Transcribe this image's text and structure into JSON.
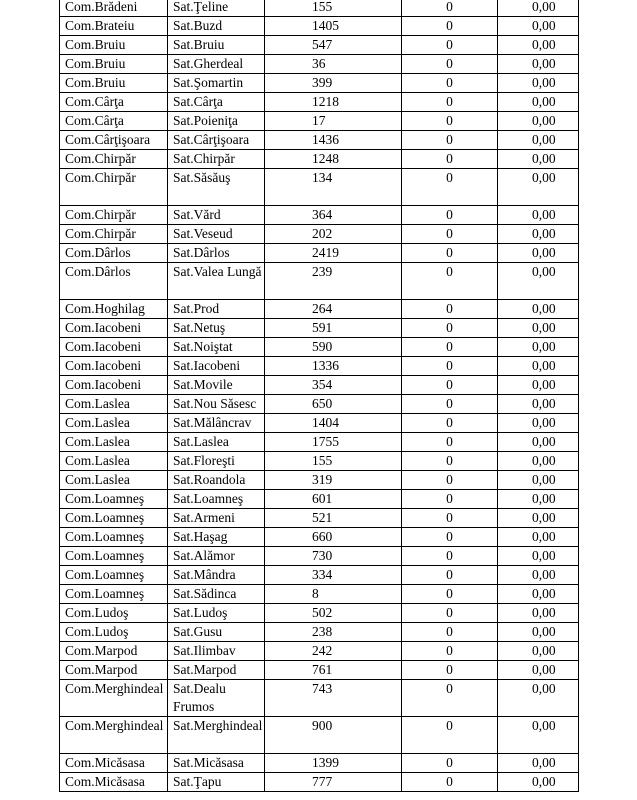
{
  "rows": [
    {
      "commune": "Com.Brădeni",
      "village": "Sat.Ţeline",
      "population": "155",
      "count": "0",
      "value": "0,00"
    },
    {
      "commune": "Com.Brateiu",
      "village": "Sat.Buzd",
      "population": "1405",
      "count": "0",
      "value": "0,00"
    },
    {
      "commune": "Com.Bruiu",
      "village": "Sat.Bruiu",
      "population": "547",
      "count": "0",
      "value": "0,00"
    },
    {
      "commune": "Com.Bruiu",
      "village": "Sat.Gherdeal",
      "population": "36",
      "count": "0",
      "value": "0,00"
    },
    {
      "commune": "Com.Bruiu",
      "village": "Sat.Şomartin",
      "population": "399",
      "count": "0",
      "value": "0,00"
    },
    {
      "commune": "Com.Cârţa",
      "village": "Sat.Cârţa",
      "population": "1218",
      "count": "0",
      "value": "0,00"
    },
    {
      "commune": "Com.Cârţa",
      "village": "Sat.Poieniţa",
      "population": "17",
      "count": "0",
      "value": "0,00"
    },
    {
      "commune": "Com.Cârţişoara",
      "village": "Sat.Cârţişoara",
      "population": "1436",
      "count": "0",
      "value": "0,00"
    },
    {
      "commune": "Com.Chirpăr",
      "village": "Sat.Chirpăr",
      "population": "1248",
      "count": "0",
      "value": "0,00"
    },
    {
      "commune": "Com.Chirpăr",
      "village": "Sat.Săsăuş",
      "population": "134",
      "count": "0",
      "value": "0,00",
      "tall": true
    },
    {
      "commune": "Com.Chirpăr",
      "village": "Sat.Vărd",
      "population": "364",
      "count": "0",
      "value": "0,00"
    },
    {
      "commune": "Com.Chirpăr",
      "village": "Sat.Veseud",
      "population": "202",
      "count": "0",
      "value": "0,00"
    },
    {
      "commune": "Com.Dârlos",
      "village": "Sat.Dârlos",
      "population": "2419",
      "count": "0",
      "value": "0,00"
    },
    {
      "commune": "Com.Dârlos",
      "village": "Sat.Valea Lungă",
      "population": "239",
      "count": "0",
      "value": "0,00",
      "tall": true
    },
    {
      "commune": "Com.Hoghilag",
      "village": "Sat.Prod",
      "population": "264",
      "count": "0",
      "value": "0,00"
    },
    {
      "commune": "Com.Iacobeni",
      "village": "Sat.Netuş",
      "population": "591",
      "count": "0",
      "value": "0,00"
    },
    {
      "commune": "Com.Iacobeni",
      "village": "Sat.Noiştat",
      "population": "590",
      "count": "0",
      "value": "0,00"
    },
    {
      "commune": "Com.Iacobeni",
      "village": "Sat.Iacobeni",
      "population": "1336",
      "count": "0",
      "value": "0,00"
    },
    {
      "commune": "Com.Iacobeni",
      "village": "Sat.Movile",
      "population": "354",
      "count": "0",
      "value": "0,00"
    },
    {
      "commune": "Com.Laslea",
      "village": "Sat.Nou Săsesc",
      "population": "650",
      "count": "0",
      "value": "0,00"
    },
    {
      "commune": "Com.Laslea",
      "village": "Sat.Mălâncrav",
      "population": "1404",
      "count": "0",
      "value": "0,00"
    },
    {
      "commune": "Com.Laslea",
      "village": "Sat.Laslea",
      "population": "1755",
      "count": "0",
      "value": "0,00"
    },
    {
      "commune": "Com.Laslea",
      "village": "Sat.Floreşti",
      "population": "155",
      "count": "0",
      "value": "0,00"
    },
    {
      "commune": "Com.Laslea",
      "village": "Sat.Roandola",
      "population": "319",
      "count": "0",
      "value": "0,00"
    },
    {
      "commune": "Com.Loamneş",
      "village": "Sat.Loamneş",
      "population": "601",
      "count": "0",
      "value": "0,00"
    },
    {
      "commune": "Com.Loamneş",
      "village": "Sat.Armeni",
      "population": "521",
      "count": "0",
      "value": "0,00"
    },
    {
      "commune": "Com.Loamneş",
      "village": "Sat.Haşag",
      "population": "660",
      "count": "0",
      "value": "0,00"
    },
    {
      "commune": "Com.Loamneş",
      "village": "Sat.Alămor",
      "population": "730",
      "count": "0",
      "value": "0,00"
    },
    {
      "commune": "Com.Loamneş",
      "village": "Sat.Mândra",
      "population": "334",
      "count": "0",
      "value": "0,00"
    },
    {
      "commune": "Com.Loamneş",
      "village": "Sat.Sădinca",
      "population": "8",
      "count": "0",
      "value": "0,00"
    },
    {
      "commune": "Com.Ludoş",
      "village": "Sat.Ludoş",
      "population": "502",
      "count": "0",
      "value": "0,00"
    },
    {
      "commune": "Com.Ludoş",
      "village": "Sat.Gusu",
      "population": "238",
      "count": "0",
      "value": "0,00"
    },
    {
      "commune": "Com.Marpod",
      "village": "Sat.Ilimbav",
      "population": "242",
      "count": "0",
      "value": "0,00"
    },
    {
      "commune": "Com.Marpod",
      "village": "Sat.Marpod",
      "population": "761",
      "count": "0",
      "value": "0,00"
    },
    {
      "commune": "Com.Merghindeal",
      "village": "Sat.Dealu Frumos",
      "population": "743",
      "count": "0",
      "value": "0,00",
      "tall": true
    },
    {
      "commune": "Com.Merghindeal",
      "village": "Sat.Merghindeal",
      "population": "900",
      "count": "0",
      "value": "0,00",
      "tall": true
    },
    {
      "commune": "Com.Micăsasa",
      "village": "Sat.Micăsasa",
      "population": "1399",
      "count": "0",
      "value": "0,00"
    },
    {
      "commune": "Com.Micăsasa",
      "village": "Sat.Ţapu",
      "population": "777",
      "count": "0",
      "value": "0,00"
    }
  ]
}
